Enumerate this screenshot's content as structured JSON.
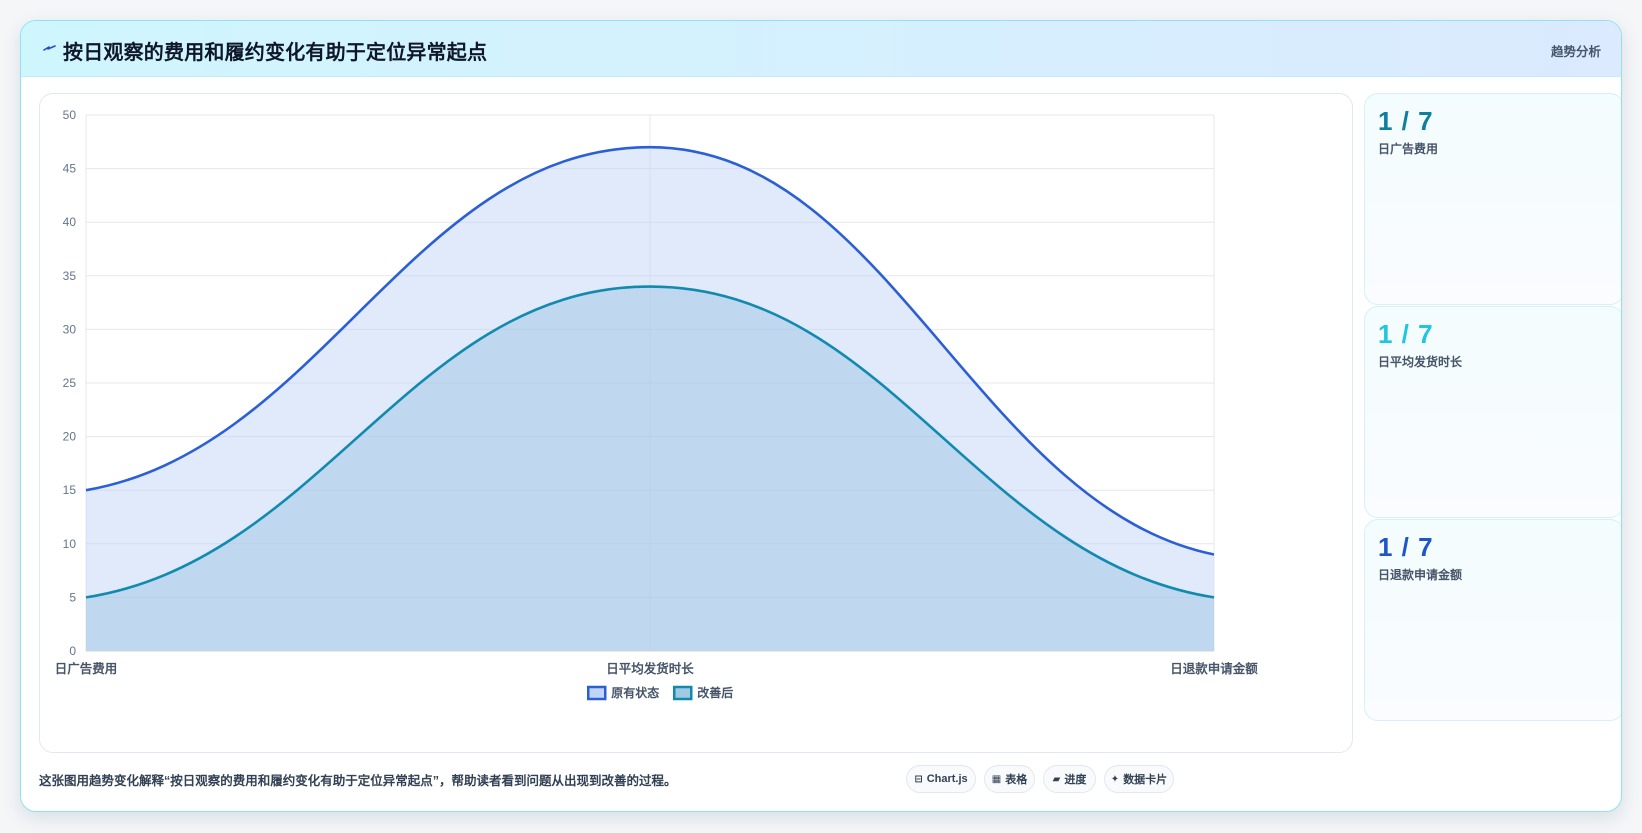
{
  "header": {
    "title": "按日观察的费用和履约变化有助于定位异常起点",
    "tag": "趋势分析"
  },
  "stats": [
    {
      "value": "1 / 7",
      "label": "日广告费用",
      "color": "#0e7f9d"
    },
    {
      "value": "1 / 7",
      "label": "日平均发货时长",
      "color": "#22c5de"
    },
    {
      "value": "1 / 7",
      "label": "日退款申请金额",
      "color": "#1e55c8"
    }
  ],
  "footer": {
    "caption": "这张图用趋势变化解释“按日观察的费用和履约变化有助于定位异常起点”，帮助读者看到问题从出现到改善的过程。",
    "chips": [
      {
        "icon": "chart-icon",
        "glyph": "⊟",
        "label": "Chart.js"
      },
      {
        "icon": "table-icon",
        "glyph": "▦",
        "label": "表格"
      },
      {
        "icon": "progress-icon",
        "glyph": "▰",
        "label": "进度"
      },
      {
        "icon": "sparkle-icon",
        "glyph": "✦",
        "label": "数据卡片"
      }
    ]
  },
  "chart_data": {
    "type": "area",
    "categories": [
      "日广告费用",
      "日平均发货时长",
      "日退款申请金额"
    ],
    "series": [
      {
        "name": "原有状态",
        "values": [
          15,
          47,
          9
        ],
        "color": "#2b5fd6",
        "fill": "rgba(188,208,246,0.45)"
      },
      {
        "name": "改善后",
        "values": [
          5,
          34,
          5
        ],
        "color": "#1289ae",
        "fill": "rgba(150,196,224,0.45)"
      }
    ],
    "ylim": [
      0,
      50
    ],
    "yticks": [
      0,
      5,
      10,
      15,
      20,
      25,
      30,
      35,
      40,
      45,
      50
    ],
    "grid": true,
    "legend": "bottom"
  }
}
